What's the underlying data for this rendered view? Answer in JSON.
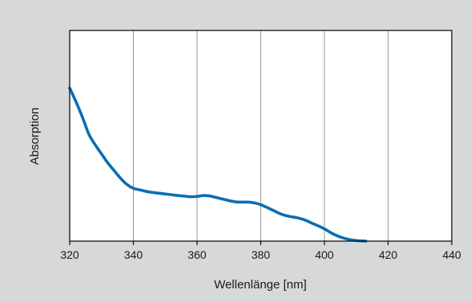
{
  "chart_data": {
    "type": "line",
    "title": "",
    "xlabel": "Wellenlänge [nm]",
    "ylabel": "Absorption",
    "xlim": [
      320,
      440
    ],
    "ylim": [
      0,
      1
    ],
    "x_ticks": [
      320,
      340,
      360,
      380,
      400,
      420,
      440
    ],
    "x_tick_labels": [
      "320",
      "340",
      "360",
      "380",
      "400",
      "420",
      "440"
    ],
    "y_ticks_shown": false,
    "grid": "vertical",
    "legend": "none",
    "series": [
      {
        "color": "#0a6db4",
        "x": [
          320,
          322,
          324,
          326,
          328,
          330,
          332,
          334,
          336,
          338,
          340,
          342,
          344,
          346,
          348,
          350,
          352,
          354,
          356,
          358,
          360,
          362,
          364,
          366,
          368,
          370,
          372,
          374,
          376,
          378,
          380,
          382,
          384,
          386,
          388,
          390,
          392,
          394,
          396,
          398,
          400,
          402,
          404,
          406,
          408,
          410,
          412,
          413
        ],
        "y": [
          1.0,
          0.91,
          0.81,
          0.7,
          0.63,
          0.57,
          0.51,
          0.46,
          0.41,
          0.37,
          0.345,
          0.335,
          0.325,
          0.318,
          0.313,
          0.308,
          0.303,
          0.298,
          0.294,
          0.29,
          0.292,
          0.298,
          0.295,
          0.285,
          0.275,
          0.265,
          0.257,
          0.255,
          0.255,
          0.25,
          0.238,
          0.22,
          0.2,
          0.18,
          0.166,
          0.158,
          0.15,
          0.137,
          0.118,
          0.1,
          0.08,
          0.055,
          0.035,
          0.02,
          0.01,
          0.004,
          0.001,
          0.0
        ]
      }
    ]
  }
}
